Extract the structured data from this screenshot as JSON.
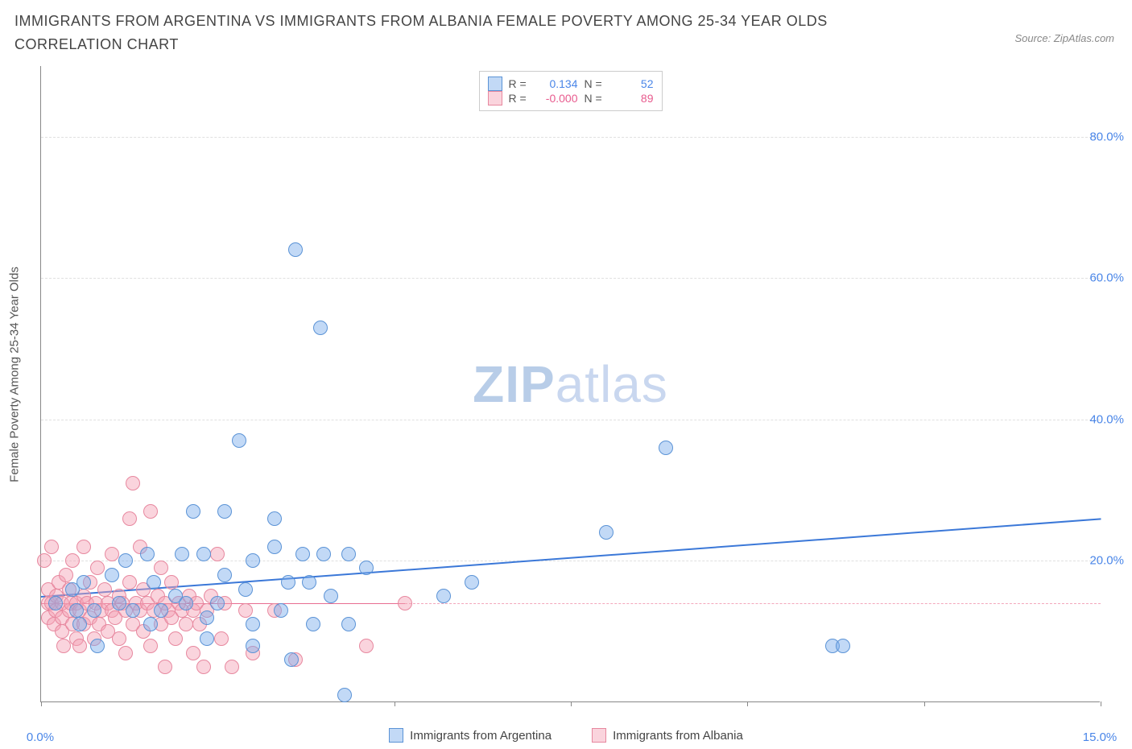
{
  "title": "IMMIGRANTS FROM ARGENTINA VS IMMIGRANTS FROM ALBANIA FEMALE POVERTY AMONG 25-34 YEAR OLDS CORRELATION CHART",
  "source_label": "Source: ZipAtlas.com",
  "watermark_bold": "ZIP",
  "watermark_light": "atlas",
  "ylabel": "Female Poverty Among 25-34 Year Olds",
  "background_color": "#ffffff",
  "grid_color": "#e0e0e0",
  "xlim": [
    0,
    15
  ],
  "ylim": [
    0,
    90
  ],
  "xticks": [
    {
      "val": 0.0,
      "label": "0.0%"
    },
    {
      "val": 5.0,
      "label": ""
    },
    {
      "val": 7.5,
      "label": ""
    },
    {
      "val": 10.0,
      "label": ""
    },
    {
      "val": 12.5,
      "label": ""
    },
    {
      "val": 15.0,
      "label": "15.0%"
    }
  ],
  "yticks": [
    {
      "val": 20,
      "label": "20.0%"
    },
    {
      "val": 40,
      "label": "40.0%"
    },
    {
      "val": 60,
      "label": "60.0%"
    },
    {
      "val": 80,
      "label": "80.0%"
    }
  ],
  "series": {
    "argentina": {
      "label": "Immigrants from Argentina",
      "r_value": "0.134",
      "n_value": "52",
      "fill": "rgba(120,170,235,0.45)",
      "stroke": "#5b93d6",
      "text_color": "#4a86e8",
      "marker_radius": 9,
      "trend": {
        "x1": 0,
        "y1": 15,
        "x2": 15,
        "y2": 26,
        "color": "#3b78d8",
        "width": 2,
        "dash": "none"
      },
      "points": [
        [
          0.2,
          14
        ],
        [
          0.45,
          16
        ],
        [
          0.5,
          13
        ],
        [
          0.55,
          11
        ],
        [
          0.6,
          17
        ],
        [
          0.75,
          13
        ],
        [
          0.8,
          8
        ],
        [
          1.0,
          18
        ],
        [
          1.1,
          14
        ],
        [
          1.2,
          20
        ],
        [
          1.3,
          13
        ],
        [
          1.5,
          21
        ],
        [
          1.55,
          11
        ],
        [
          1.6,
          17
        ],
        [
          1.7,
          13
        ],
        [
          1.9,
          15
        ],
        [
          2.0,
          21
        ],
        [
          2.05,
          14
        ],
        [
          2.15,
          27
        ],
        [
          2.3,
          21
        ],
        [
          2.35,
          9
        ],
        [
          2.35,
          12
        ],
        [
          2.5,
          14
        ],
        [
          2.6,
          27
        ],
        [
          2.6,
          18
        ],
        [
          2.8,
          37
        ],
        [
          2.9,
          16
        ],
        [
          3.0,
          11
        ],
        [
          3.0,
          20
        ],
        [
          3.0,
          8
        ],
        [
          3.3,
          22
        ],
        [
          3.3,
          26
        ],
        [
          3.4,
          13
        ],
        [
          3.5,
          17
        ],
        [
          3.55,
          6
        ],
        [
          3.6,
          64
        ],
        [
          3.7,
          21
        ],
        [
          3.8,
          17
        ],
        [
          3.85,
          11
        ],
        [
          3.95,
          53
        ],
        [
          4.0,
          21
        ],
        [
          4.1,
          15
        ],
        [
          4.3,
          1
        ],
        [
          4.35,
          11
        ],
        [
          4.35,
          21
        ],
        [
          4.6,
          19
        ],
        [
          5.7,
          15
        ],
        [
          6.1,
          17
        ],
        [
          8.0,
          24
        ],
        [
          8.85,
          36
        ],
        [
          11.2,
          8
        ],
        [
          11.35,
          8
        ]
      ]
    },
    "albania": {
      "label": "Immigrants from Albania",
      "r_value": "-0.000",
      "n_value": "89",
      "fill": "rgba(245,160,180,0.45)",
      "stroke": "#e7889f",
      "text_color": "#e85b8e",
      "marker_radius": 9,
      "trend_solid": {
        "x1": 0,
        "y1": 14,
        "x2": 5.15,
        "y2": 14,
        "color": "#e86d91",
        "width": 1.6,
        "dash": "none"
      },
      "trend_dash": {
        "x1": 5.15,
        "y1": 14,
        "x2": 15,
        "y2": 14,
        "color": "#f3a7bb",
        "width": 1.2,
        "dash": "5,5"
      },
      "points": [
        [
          0.05,
          20
        ],
        [
          0.1,
          14
        ],
        [
          0.1,
          16
        ],
        [
          0.1,
          12
        ],
        [
          0.15,
          14
        ],
        [
          0.15,
          22
        ],
        [
          0.18,
          11
        ],
        [
          0.2,
          13
        ],
        [
          0.22,
          15
        ],
        [
          0.25,
          17
        ],
        [
          0.3,
          12
        ],
        [
          0.3,
          10
        ],
        [
          0.3,
          14
        ],
        [
          0.32,
          8
        ],
        [
          0.35,
          18
        ],
        [
          0.4,
          13
        ],
        [
          0.4,
          16
        ],
        [
          0.42,
          14
        ],
        [
          0.45,
          11
        ],
        [
          0.45,
          20
        ],
        [
          0.5,
          9
        ],
        [
          0.5,
          14
        ],
        [
          0.55,
          13
        ],
        [
          0.55,
          8
        ],
        [
          0.6,
          15
        ],
        [
          0.6,
          11
        ],
        [
          0.6,
          22
        ],
        [
          0.65,
          14
        ],
        [
          0.7,
          12
        ],
        [
          0.7,
          17
        ],
        [
          0.75,
          9
        ],
        [
          0.78,
          14
        ],
        [
          0.8,
          19
        ],
        [
          0.82,
          11
        ],
        [
          0.85,
          13
        ],
        [
          0.9,
          16
        ],
        [
          0.95,
          14
        ],
        [
          0.95,
          10
        ],
        [
          1.0,
          13
        ],
        [
          1.0,
          21
        ],
        [
          1.05,
          12
        ],
        [
          1.1,
          15
        ],
        [
          1.1,
          9
        ],
        [
          1.15,
          14
        ],
        [
          1.2,
          7
        ],
        [
          1.2,
          13
        ],
        [
          1.25,
          17
        ],
        [
          1.25,
          26
        ],
        [
          1.3,
          11
        ],
        [
          1.3,
          31
        ],
        [
          1.35,
          14
        ],
        [
          1.4,
          13
        ],
        [
          1.4,
          22
        ],
        [
          1.45,
          16
        ],
        [
          1.45,
          10
        ],
        [
          1.5,
          14
        ],
        [
          1.55,
          8
        ],
        [
          1.55,
          27
        ],
        [
          1.6,
          13
        ],
        [
          1.65,
          15
        ],
        [
          1.7,
          11
        ],
        [
          1.7,
          19
        ],
        [
          1.75,
          5
        ],
        [
          1.75,
          14
        ],
        [
          1.8,
          13
        ],
        [
          1.85,
          12
        ],
        [
          1.85,
          17
        ],
        [
          1.9,
          9
        ],
        [
          1.95,
          14
        ],
        [
          2.0,
          13
        ],
        [
          2.05,
          11
        ],
        [
          2.1,
          15
        ],
        [
          2.15,
          7
        ],
        [
          2.15,
          13
        ],
        [
          2.2,
          14
        ],
        [
          2.25,
          11
        ],
        [
          2.3,
          5
        ],
        [
          2.35,
          13
        ],
        [
          2.4,
          15
        ],
        [
          2.5,
          21
        ],
        [
          2.55,
          9
        ],
        [
          2.6,
          14
        ],
        [
          2.7,
          5
        ],
        [
          2.9,
          13
        ],
        [
          3.0,
          7
        ],
        [
          3.3,
          13
        ],
        [
          3.6,
          6
        ],
        [
          4.6,
          8
        ],
        [
          5.15,
          14
        ]
      ]
    }
  },
  "legend_labels": {
    "R": "R =",
    "N": "N ="
  }
}
